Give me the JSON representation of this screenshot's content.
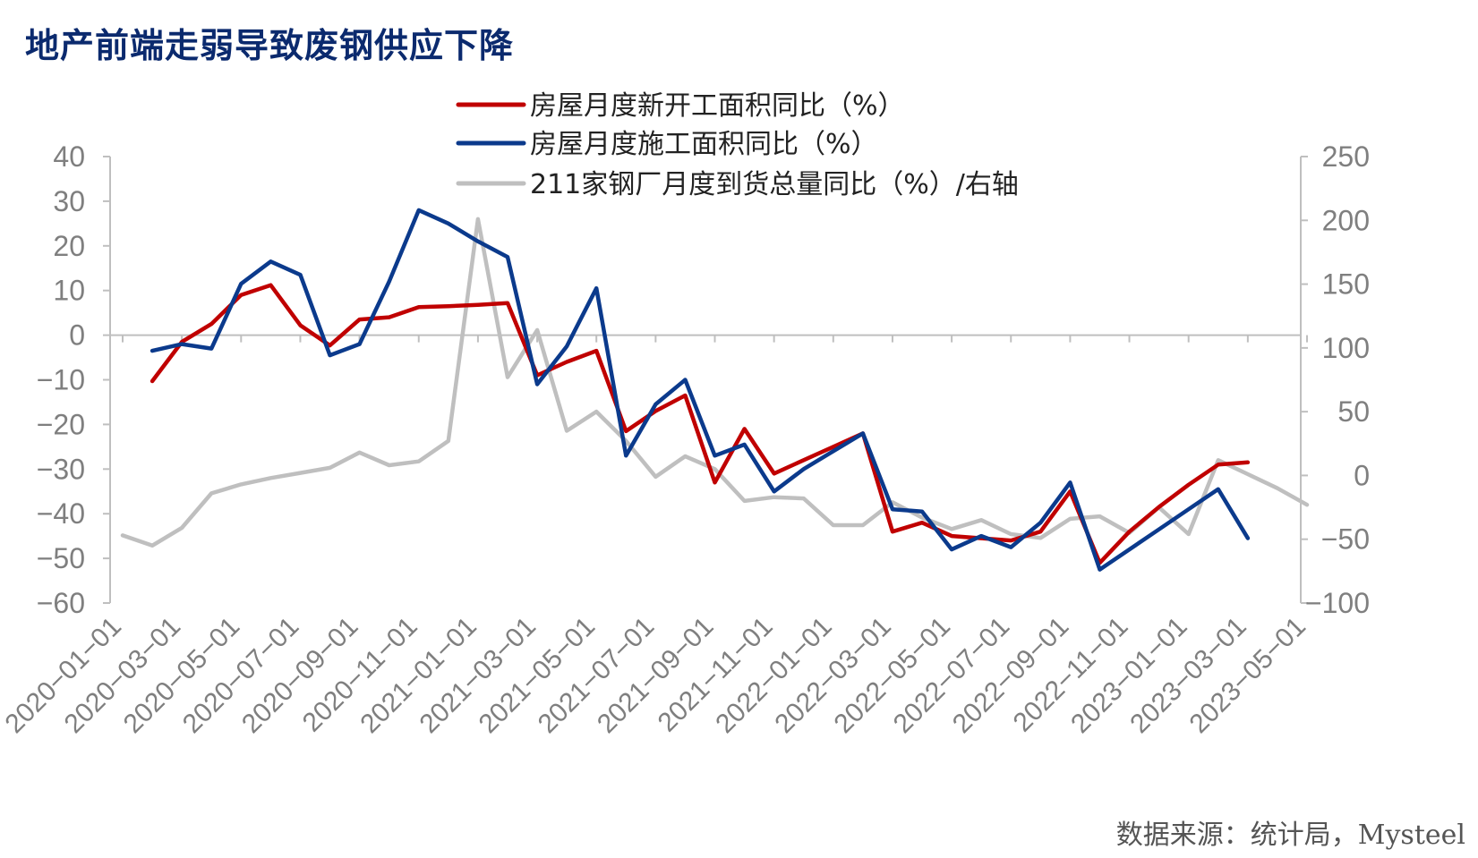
{
  "title": "地产前端走弱导致废钢供应下降",
  "source": "数据来源：统计局，Mysteel",
  "chart_data": {
    "type": "line",
    "x_labels": [
      "2020-01-01",
      "2020-03-01",
      "2020-05-01",
      "2020-07-01",
      "2020-09-01",
      "2020-11-01",
      "2021-01-01",
      "2021-03-01",
      "2021-05-01",
      "2021-07-01",
      "2021-09-01",
      "2021-11-01",
      "2022-01-01",
      "2022-03-01",
      "2022-05-01",
      "2022-07-01",
      "2022-09-01",
      "2022-11-01",
      "2023-01-01",
      "2023-03-01",
      "2023-05-01"
    ],
    "y_left": {
      "min": -60,
      "max": 40,
      "ticks": [
        40,
        30,
        20,
        10,
        0,
        -10,
        -20,
        -30,
        -40,
        -50,
        -60
      ]
    },
    "y_right": {
      "min": -100,
      "max": 250,
      "ticks": [
        250,
        200,
        150,
        100,
        50,
        0,
        -50,
        -100
      ]
    },
    "legend": {
      "position": "top-center"
    },
    "series": [
      {
        "name": "房屋月度新开工面积同比（%）",
        "axis": "left",
        "color": "#c00000",
        "points": [
          [
            "2020-02-01",
            -10.3
          ],
          [
            "2020-03-01",
            -1.5
          ],
          [
            "2020-04-01",
            2.5
          ],
          [
            "2020-05-01",
            9.0
          ],
          [
            "2020-06-01",
            11.2
          ],
          [
            "2020-07-01",
            2.2
          ],
          [
            "2020-08-01",
            -2.3
          ],
          [
            "2020-09-01",
            3.5
          ],
          [
            "2020-10-01",
            4.0
          ],
          [
            "2020-11-01",
            6.3
          ],
          [
            "2020-12-01",
            6.5
          ],
          [
            "2021-01-01",
            6.8
          ],
          [
            "2021-02-01",
            7.2
          ],
          [
            "2021-03-01",
            -9.0
          ],
          [
            "2021-04-01",
            -6.0
          ],
          [
            "2021-05-01",
            -3.5
          ],
          [
            "2021-06-01",
            -21.5
          ],
          [
            "2021-07-01",
            -17.0
          ],
          [
            "2021-08-01",
            -13.5
          ],
          [
            "2021-09-01",
            -33.0
          ],
          [
            "2021-10-01",
            -21.0
          ],
          [
            "2021-11-01",
            -31.0
          ],
          [
            "2021-12-01",
            -28.0
          ],
          [
            "2022-01-01",
            -25.0
          ],
          [
            "2022-02-01",
            -22.0
          ],
          [
            "2022-03-01",
            -44.0
          ],
          [
            "2022-04-01",
            -42.0
          ],
          [
            "2022-05-01",
            -45.0
          ],
          [
            "2022-06-01",
            -45.5
          ],
          [
            "2022-07-01",
            -46.0
          ],
          [
            "2022-08-01",
            -44.0
          ],
          [
            "2022-09-01",
            -35.0
          ],
          [
            "2022-10-01",
            -51.0
          ],
          [
            "2022-11-01",
            -44.0
          ],
          [
            "2022-12-01",
            -38.5
          ],
          [
            "2023-01-01",
            -33.5
          ],
          [
            "2023-02-01",
            -29.0
          ],
          [
            "2023-03-01",
            -28.5
          ]
        ]
      },
      {
        "name": "房屋月度施工面积同比（%）",
        "axis": "left",
        "color": "#0b3a8c",
        "points": [
          [
            "2020-02-01",
            -3.5
          ],
          [
            "2020-03-01",
            -2.0
          ],
          [
            "2020-04-01",
            -3.0
          ],
          [
            "2020-05-01",
            11.5
          ],
          [
            "2020-06-01",
            16.5
          ],
          [
            "2020-07-01",
            13.5
          ],
          [
            "2020-08-01",
            -4.5
          ],
          [
            "2020-09-01",
            -2.0
          ],
          [
            "2020-10-01",
            12.0
          ],
          [
            "2020-11-01",
            28.0
          ],
          [
            "2020-12-01",
            25.0
          ],
          [
            "2021-01-01",
            21.0
          ],
          [
            "2021-02-01",
            17.5
          ],
          [
            "2021-03-01",
            -11.0
          ],
          [
            "2021-04-01",
            -2.5
          ],
          [
            "2021-05-01",
            10.5
          ],
          [
            "2021-06-01",
            -27.0
          ],
          [
            "2021-07-01",
            -15.5
          ],
          [
            "2021-08-01",
            -10.0
          ],
          [
            "2021-09-01",
            -27.0
          ],
          [
            "2021-10-01",
            -24.5
          ],
          [
            "2021-11-01",
            -35.0
          ],
          [
            "2021-12-01",
            -30.0
          ],
          [
            "2022-01-01",
            -26.0
          ],
          [
            "2022-02-01",
            -22.0
          ],
          [
            "2022-03-01",
            -39.0
          ],
          [
            "2022-04-01",
            -39.5
          ],
          [
            "2022-05-01",
            -48.0
          ],
          [
            "2022-06-01",
            -45.0
          ],
          [
            "2022-07-01",
            -47.5
          ],
          [
            "2022-08-01",
            -42.0
          ],
          [
            "2022-09-01",
            -33.0
          ],
          [
            "2022-10-01",
            -52.5
          ],
          [
            "2022-11-01",
            -48.0
          ],
          [
            "2022-12-01",
            -43.5
          ],
          [
            "2023-01-01",
            -39.0
          ],
          [
            "2023-02-01",
            -34.5
          ],
          [
            "2023-03-01",
            -45.5
          ]
        ]
      },
      {
        "name": "211家钢厂月度到货总量同比（%）/右轴",
        "axis": "right",
        "color": "#bfbfbf",
        "points": [
          [
            "2020-01-01",
            -47
          ],
          [
            "2020-02-01",
            -55
          ],
          [
            "2020-03-01",
            -41
          ],
          [
            "2020-04-01",
            -14
          ],
          [
            "2020-05-01",
            -7
          ],
          [
            "2020-06-01",
            -2
          ],
          [
            "2020-07-01",
            2
          ],
          [
            "2020-08-01",
            6
          ],
          [
            "2020-09-01",
            18
          ],
          [
            "2020-10-01",
            8
          ],
          [
            "2020-11-01",
            11
          ],
          [
            "2020-12-01",
            27
          ],
          [
            "2021-01-01",
            201
          ],
          [
            "2021-02-01",
            77
          ],
          [
            "2021-03-01",
            114
          ],
          [
            "2021-04-01",
            35
          ],
          [
            "2021-05-01",
            50
          ],
          [
            "2021-06-01",
            27
          ],
          [
            "2021-07-01",
            -1
          ],
          [
            "2021-08-01",
            15
          ],
          [
            "2021-09-01",
            5
          ],
          [
            "2021-10-01",
            -20
          ],
          [
            "2021-11-01",
            -17
          ],
          [
            "2021-12-01",
            -18
          ],
          [
            "2022-01-01",
            -39
          ],
          [
            "2022-02-01",
            -39
          ],
          [
            "2022-03-01",
            -21
          ],
          [
            "2022-04-01",
            -33
          ],
          [
            "2022-05-01",
            -42
          ],
          [
            "2022-06-01",
            -35
          ],
          [
            "2022-07-01",
            -46
          ],
          [
            "2022-08-01",
            -49
          ],
          [
            "2022-09-01",
            -34
          ],
          [
            "2022-10-01",
            -32
          ],
          [
            "2022-11-01",
            -45
          ],
          [
            "2022-12-01",
            -25
          ],
          [
            "2023-01-01",
            -46
          ],
          [
            "2023-02-01",
            12
          ],
          [
            "2023-03-01",
            1
          ],
          [
            "2023-04-01",
            -10
          ],
          [
            "2023-05-01",
            -23
          ]
        ]
      }
    ]
  }
}
